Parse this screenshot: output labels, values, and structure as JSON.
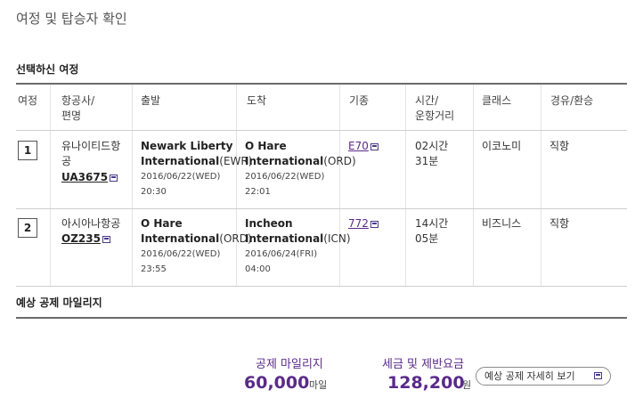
{
  "page_title": "여정 및 탑승자 확인",
  "itinerary_section": {
    "title": "선택하신 여정",
    "columns": [
      "여정",
      "항공사/\n편명",
      "출발",
      "도착",
      "기종",
      "시간/\n운항거리",
      "클래스",
      "경유/환승"
    ],
    "rows": [
      {
        "no": "1",
        "airline": "유나이티드항공",
        "flight": "UA3675",
        "dep_name": "Newark Liberty",
        "dep_intl": "International",
        "dep_code": "(EWR)",
        "dep_date": "2016/06/22(WED)",
        "dep_time": "20:30",
        "arr_name": "O Hare",
        "arr_intl": "International",
        "arr_code": "(ORD)",
        "arr_date": "2016/06/22(WED)",
        "arr_time": "22:01",
        "aircraft": "E70",
        "duration_h": "02시간",
        "duration_m": "31분",
        "class": "이코노미",
        "transit": "직항"
      },
      {
        "no": "2",
        "airline": "아시아나항공",
        "flight": "OZ235",
        "dep_name": "O Hare",
        "dep_intl": "International",
        "dep_code": "(ORD)",
        "dep_date": "2016/06/22(WED)",
        "dep_time": "23:55",
        "arr_name": "Incheon",
        "arr_intl": "International",
        "arr_code": "(ICN)",
        "arr_date": "2016/06/24(FRI)",
        "arr_time": "04:00",
        "aircraft": "772",
        "duration_h": "14시간",
        "duration_m": "05분",
        "class": "비즈니스",
        "transit": "직항"
      }
    ]
  },
  "mileage_section": {
    "title": "예상 공제 마일리지",
    "deduct_label": "공제 마일리지",
    "deduct_value": "60,000",
    "deduct_unit": "마일",
    "tax_label": "세금 및 제반요금",
    "tax_value": "128,200",
    "tax_unit": "원",
    "detail_button": "예상 공제 자세히 보기"
  },
  "colors": {
    "accent": "#5a2a8a",
    "rule": "#6b6b6b"
  },
  "icons": [
    "external-window-icon"
  ]
}
